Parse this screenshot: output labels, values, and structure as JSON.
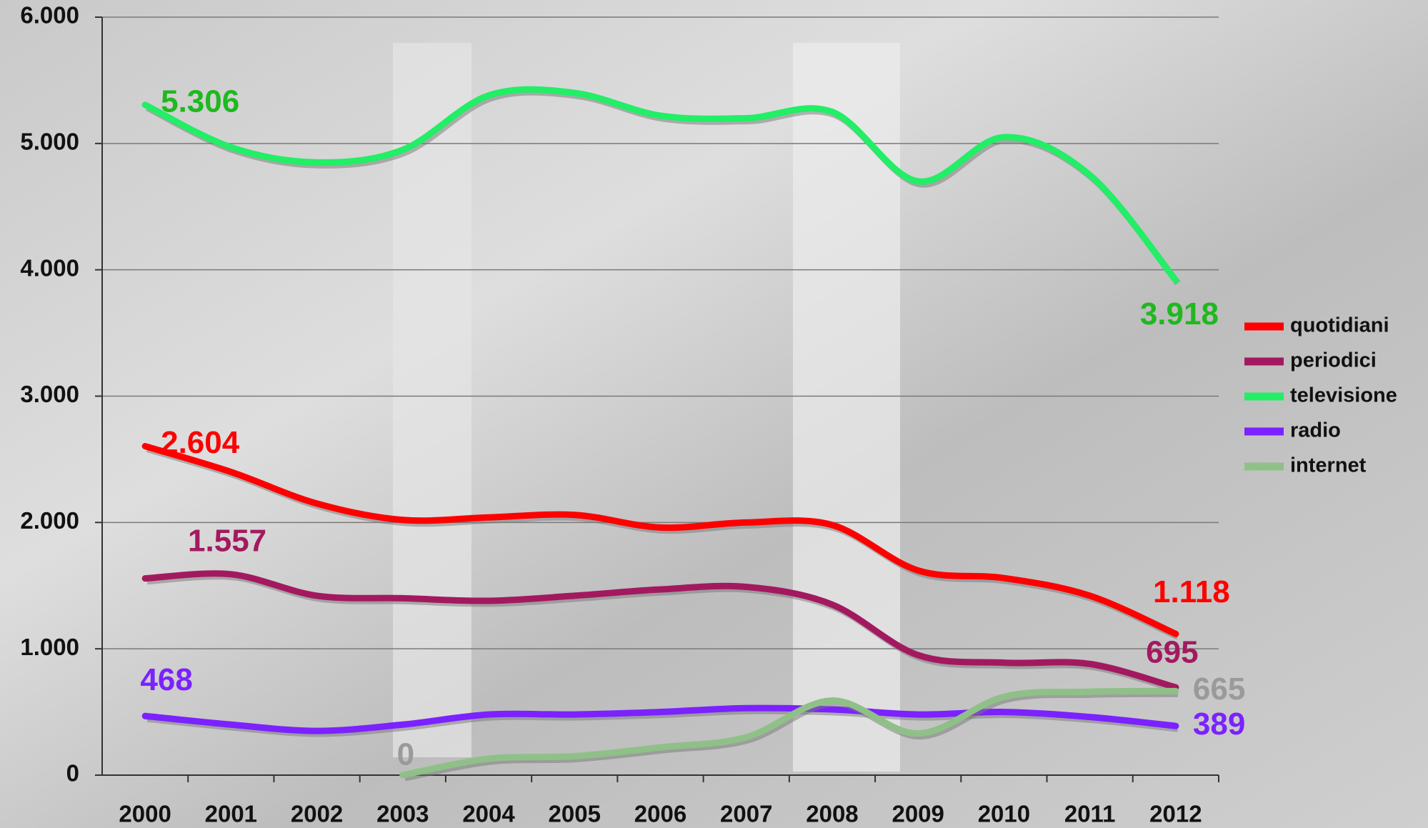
{
  "chart_data": {
    "type": "line",
    "categories": [
      "2000",
      "2001",
      "2002",
      "2003",
      "2004",
      "2005",
      "2006",
      "2007",
      "2008",
      "2009",
      "2010",
      "2011",
      "2012"
    ],
    "ylim": [
      0,
      6000
    ],
    "yticks": [
      0,
      {
        "value": 1000,
        "label": "1.000"
      },
      {
        "value": 2000,
        "label": "2.000"
      },
      {
        "value": 3000,
        "label": "3.000"
      },
      {
        "value": 4000,
        "label": "4.000"
      },
      {
        "value": 5000,
        "label": "5.000"
      },
      {
        "value": 6000,
        "label": "6.000"
      }
    ],
    "grid": true,
    "legend": "right",
    "series": [
      {
        "name": "quotidiani",
        "color": "#ff0000",
        "label_color": "#ff0000",
        "values": [
          2604,
          2400,
          2150,
          2020,
          2040,
          2060,
          1960,
          2000,
          1980,
          1620,
          1560,
          1420,
          1118
        ],
        "value_labels": [
          "2.604",
          null,
          null,
          null,
          null,
          null,
          null,
          null,
          null,
          null,
          null,
          null,
          "1.118"
        ]
      },
      {
        "name": "periodici",
        "color": "#a3195f",
        "label_color": "#a3195f",
        "values": [
          1557,
          1590,
          1420,
          1400,
          1380,
          1420,
          1470,
          1490,
          1350,
          950,
          890,
          880,
          695
        ],
        "value_labels": [
          "1.557",
          null,
          null,
          null,
          null,
          null,
          null,
          null,
          null,
          null,
          null,
          null,
          "695"
        ]
      },
      {
        "name": "televisione",
        "color": "#22ee66",
        "label_color": "#1fb81f",
        "values": [
          5306,
          4970,
          4850,
          4950,
          5380,
          5400,
          5220,
          5200,
          5250,
          4700,
          5050,
          4750,
          3918
        ],
        "value_labels": [
          "5.306",
          null,
          null,
          null,
          null,
          null,
          null,
          null,
          null,
          null,
          null,
          null,
          "3.918"
        ]
      },
      {
        "name": "radio",
        "color": "#7b22ff",
        "label_color": "#7b22ff",
        "values": [
          468,
          400,
          350,
          400,
          480,
          480,
          500,
          530,
          520,
          480,
          500,
          460,
          389
        ],
        "value_labels": [
          "468",
          null,
          null,
          null,
          null,
          null,
          null,
          null,
          null,
          null,
          null,
          null,
          "389"
        ]
      },
      {
        "name": "internet",
        "color": "#8fc088",
        "label_color": "#9a9a9a",
        "values": [
          null,
          null,
          null,
          0,
          130,
          150,
          220,
          300,
          590,
          330,
          620,
          660,
          665
        ],
        "value_labels": [
          null,
          null,
          null,
          "0",
          null,
          null,
          null,
          null,
          null,
          null,
          null,
          null,
          "665"
        ]
      }
    ]
  }
}
